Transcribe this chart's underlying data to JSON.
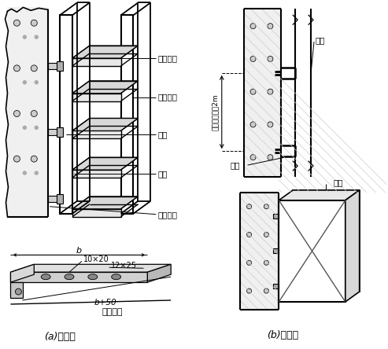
{
  "bg_color": "#ffffff",
  "label_a": "(a)方式一",
  "label_b": "(b)方式二",
  "label_gudingpaban": "固定压板",
  "label_lianjieluoshuan": "连按螺栋",
  "label_qiaojia": "桥架",
  "label_tuobi": "托臂",
  "label_pengzhangluoshuan": "膏胀螺栋",
  "label_b_spacing": "固定间距小于2m",
  "label_cugong": "槽鈢",
  "label_flat": "扁鈢托臂",
  "dim_10x20": "10×20",
  "dim_12x25": "12×25",
  "dim_b": "b",
  "dim_b50": "b+50"
}
